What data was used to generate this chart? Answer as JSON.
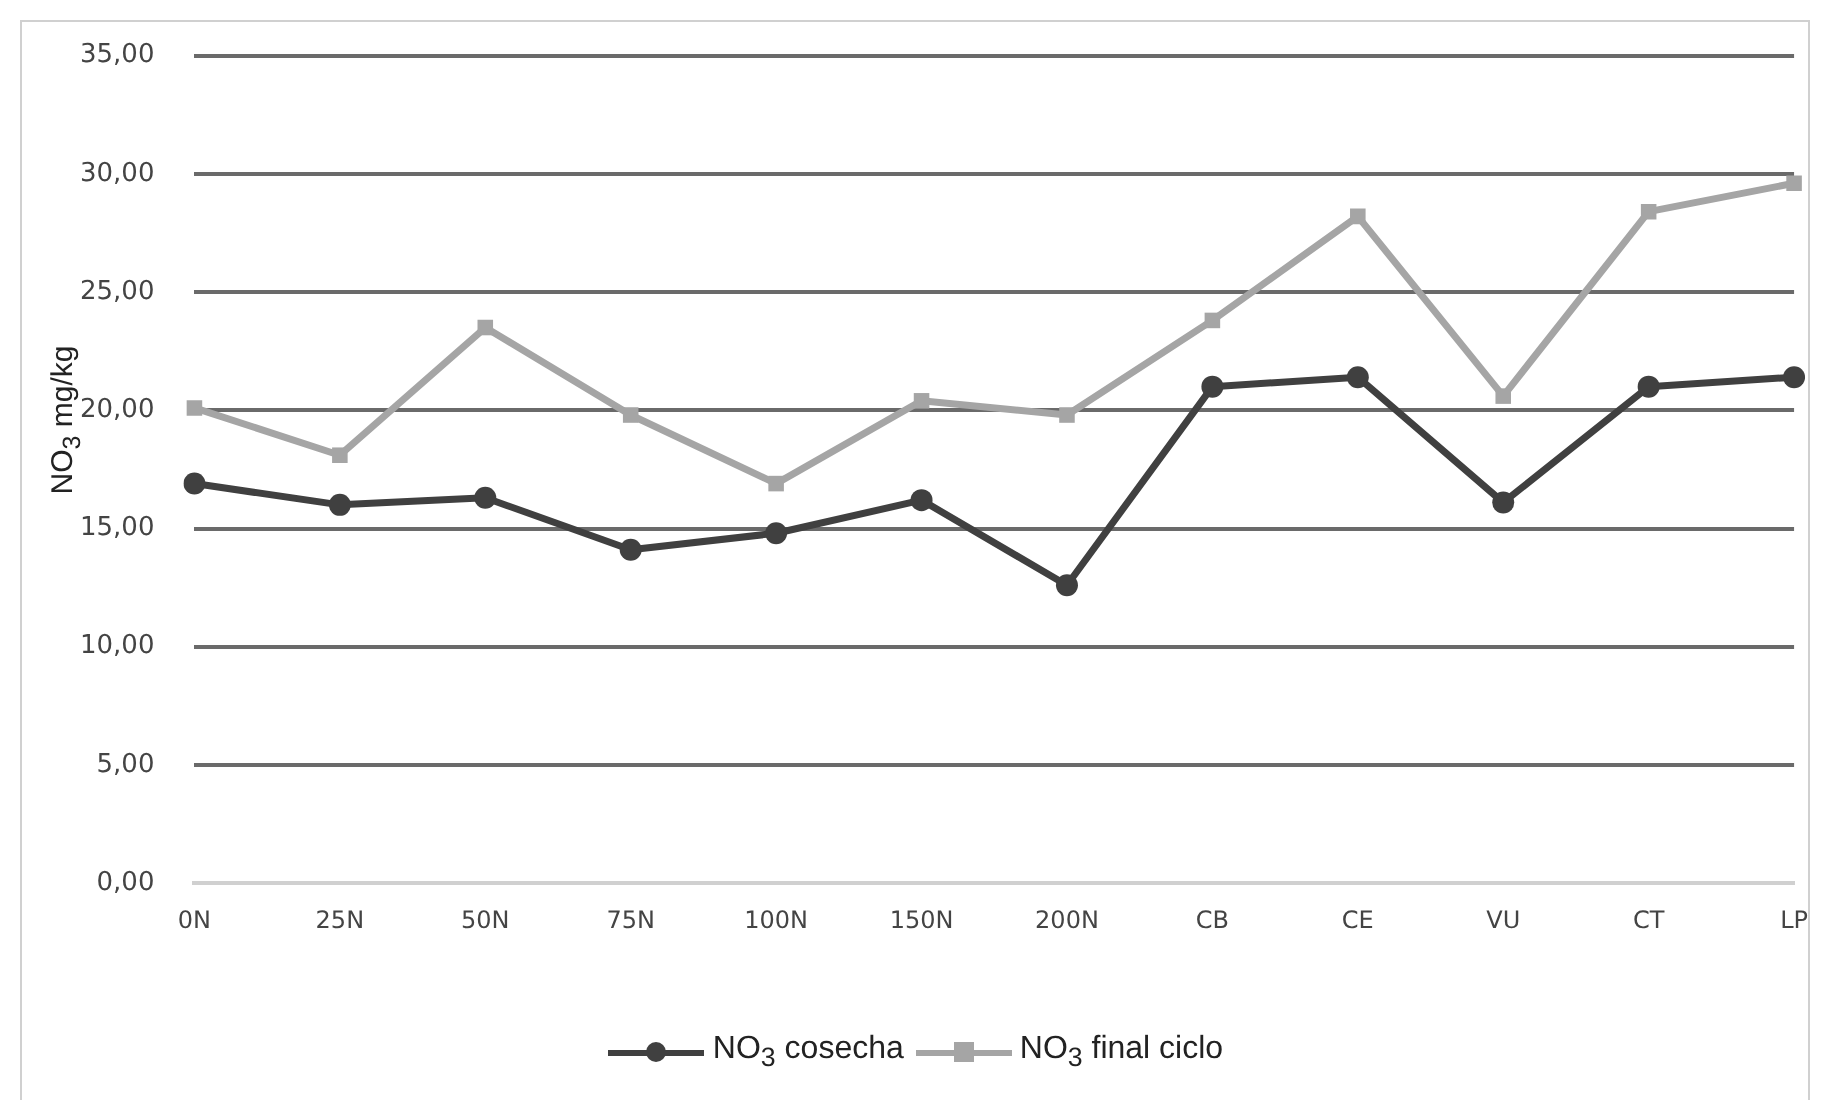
{
  "chart_data": {
    "type": "line",
    "ylabel": "NO$_{3}$ mg/kg",
    "categories": [
      "0N",
      "25N",
      "50N",
      "75N",
      "100N",
      "150N",
      "200N",
      "CB",
      "CE",
      "VU",
      "CT",
      "LP"
    ],
    "series": [
      {
        "name": "NO$_{3}$ cosecha",
        "color": "#404040",
        "marker": "circle",
        "values": [
          16.9,
          16.0,
          16.3,
          14.1,
          14.8,
          16.2,
          12.6,
          21.0,
          21.4,
          16.1,
          21.0,
          21.4
        ]
      },
      {
        "name": "NO$_{3}$ final ciclo",
        "color": "#a5a5a5",
        "marker": "square",
        "values": [
          20.1,
          18.1,
          23.5,
          19.8,
          16.9,
          20.4,
          19.8,
          23.8,
          28.2,
          20.6,
          28.4,
          29.6
        ]
      }
    ],
    "ylim": [
      0,
      35
    ],
    "yticks": [
      {
        "value": 0,
        "label": "0,00"
      },
      {
        "value": 5,
        "label": "5,00"
      },
      {
        "value": 10,
        "label": "10,00"
      },
      {
        "value": 15,
        "label": "15,00"
      },
      {
        "value": 20,
        "label": "20,00"
      },
      {
        "value": 25,
        "label": "25,00"
      },
      {
        "value": 30,
        "label": "30,00"
      },
      {
        "value": 35,
        "label": "35,00"
      }
    ],
    "grid": "y",
    "legend": "bottom",
    "line_style": "solid"
  }
}
